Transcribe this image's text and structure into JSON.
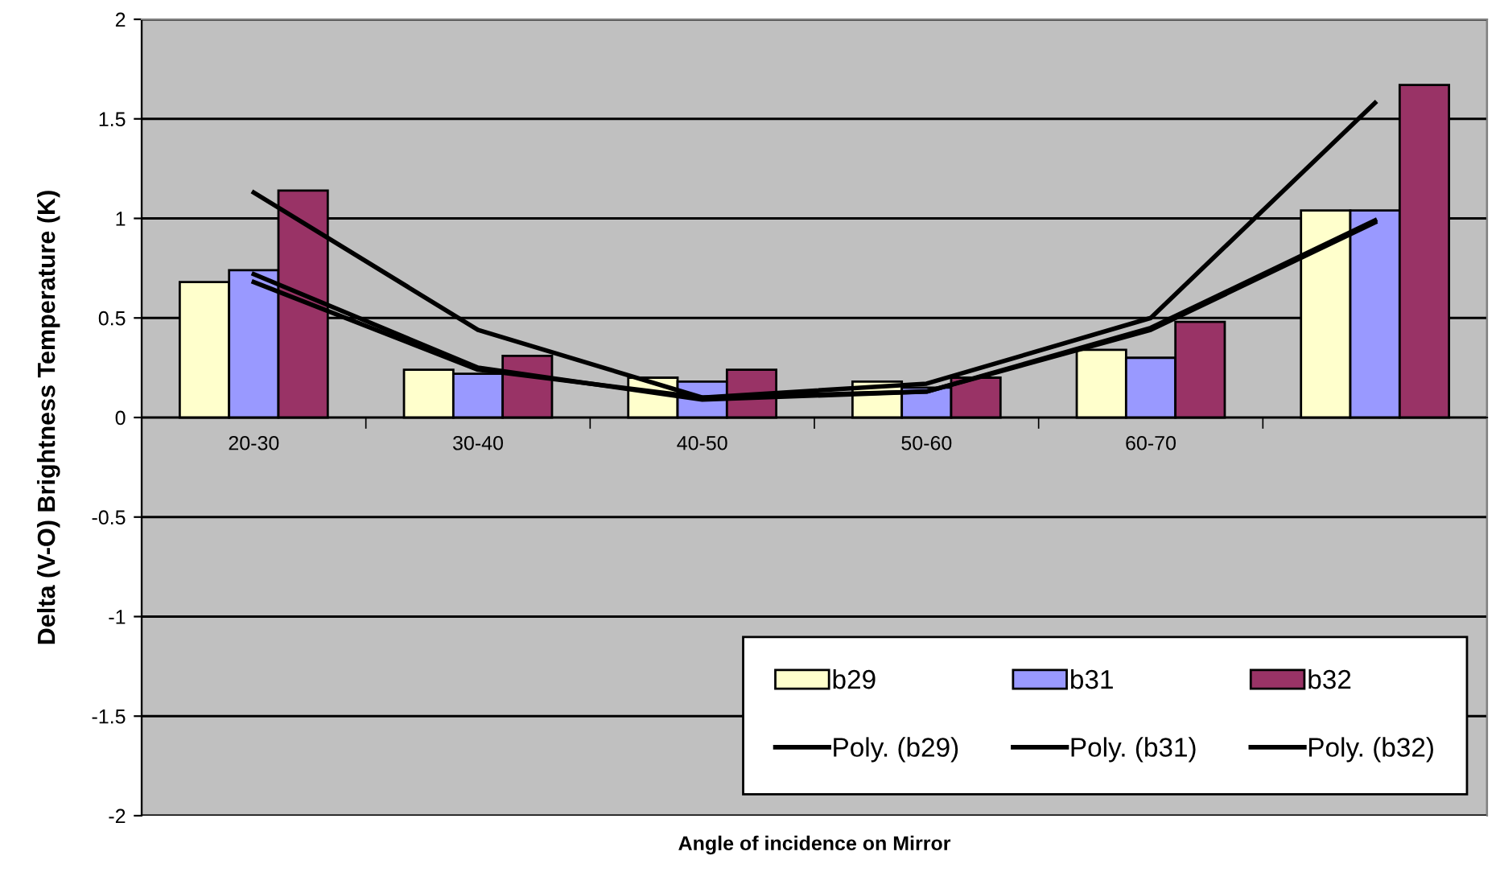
{
  "chart_data": {
    "type": "bar",
    "xlabel": "Angle of incidence on Mirror",
    "ylabel": "Delta (V-O) Brightness Temperature (K)",
    "categories": [
      "20-30",
      "30-40",
      "40-50",
      "50-60",
      "60-70",
      null
    ],
    "series": [
      {
        "name": "b29",
        "color": "#ffffcc",
        "values": [
          0.68,
          0.24,
          0.2,
          0.18,
          0.34,
          1.04
        ]
      },
      {
        "name": "b31",
        "color": "#9999ff",
        "values": [
          0.74,
          0.22,
          0.18,
          0.15,
          0.3,
          1.04
        ]
      },
      {
        "name": "b32",
        "color": "#993366",
        "values": [
          1.14,
          0.31,
          0.24,
          0.2,
          0.48,
          1.67
        ]
      },
      {
        "name": "Poly. (b29)",
        "type": "line",
        "color": "#000000",
        "values": [
          0.68,
          0.24,
          0.1,
          0.13,
          0.44,
          0.98
        ]
      },
      {
        "name": "Poly. (b31)",
        "type": "line",
        "color": "#000000",
        "values": [
          0.72,
          0.25,
          0.09,
          0.13,
          0.45,
          0.99
        ]
      },
      {
        "name": "Poly. (b32)",
        "type": "line",
        "color": "#000000",
        "values": [
          1.13,
          0.44,
          0.1,
          0.17,
          0.5,
          1.58
        ]
      }
    ],
    "ylim": [
      -2,
      2
    ],
    "yticks": [
      -2,
      -1.5,
      -1,
      -0.5,
      0,
      0.5,
      1,
      1.5,
      2
    ],
    "grid": "y",
    "legend": "bottom right"
  }
}
